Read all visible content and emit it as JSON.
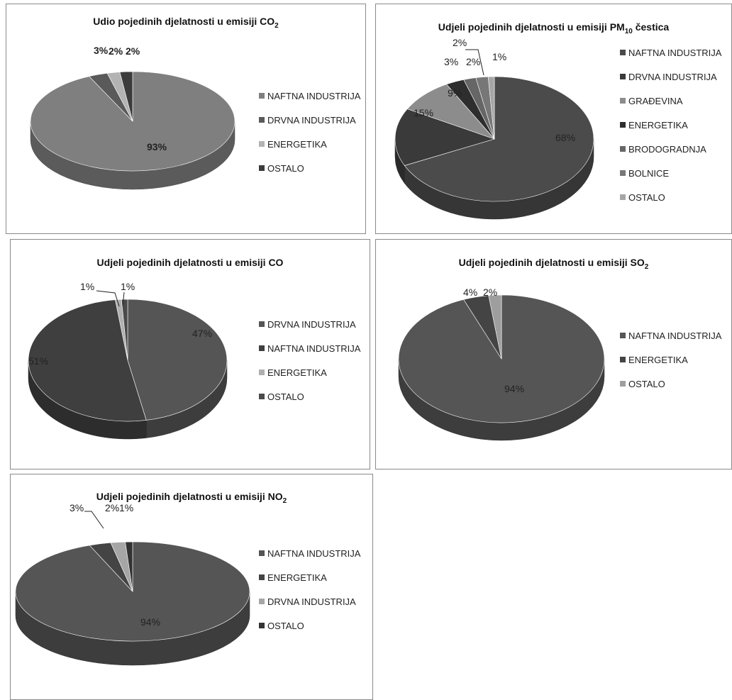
{
  "chart_data": [
    {
      "type": "pie",
      "title": "Udio pojedinih djelatnosti u emisiji CO",
      "title_sub": "2",
      "label_style": "bold",
      "slices": [
        {
          "name": "NAFTNA INDUSTRIJA",
          "value": 93,
          "label": "93%",
          "color": "#7f7f7f"
        },
        {
          "name": "DRVNA INDUSTRIJA",
          "value": 3,
          "label": "3%",
          "color": "#5a5a5a"
        },
        {
          "name": "ENERGETIKA",
          "value": 2,
          "label": "2%",
          "color": "#b3b3b3"
        },
        {
          "name": "OSTALO",
          "value": 2,
          "label": "2%",
          "color": "#3c3c3c"
        }
      ]
    },
    {
      "type": "pie",
      "title": "Udjeli pojedinih djelatnosti u emisiji PM",
      "title_sub": "10",
      "title_tail": " čestica",
      "label_style": "normal",
      "slices": [
        {
          "name": "NAFTNA INDUSTRIJA",
          "value": 68,
          "label": "68%",
          "color": "#4b4b4b"
        },
        {
          "name": "DRVNA INDUSTRIJA",
          "value": 15,
          "label": "15%",
          "color": "#3a3a3a"
        },
        {
          "name": "GRAĐEVINA",
          "value": 9,
          "label": "9%",
          "color": "#8c8c8c"
        },
        {
          "name": "ENERGETIKA",
          "value": 3,
          "label": "3%",
          "color": "#2e2e2e"
        },
        {
          "name": "BRODOGRADNJA",
          "value": 2,
          "label": "2%",
          "color": "#666666"
        },
        {
          "name": "BOLNICE",
          "value": 2,
          "label": "2%",
          "color": "#777777"
        },
        {
          "name": "OSTALO",
          "value": 1,
          "label": "1%",
          "color": "#a6a6a6"
        }
      ]
    },
    {
      "type": "pie",
      "title": "Udjeli pojedinih djelatnosti u emisiji CO",
      "label_style": "normal",
      "slices": [
        {
          "name": "DRVNA INDUSTRIJA",
          "value": 47,
          "label": "47%",
          "color": "#555555"
        },
        {
          "name": "NAFTNA INDUSTRIJA",
          "value": 51,
          "label": "51%",
          "color": "#3f3f3f"
        },
        {
          "name": "ENERGETIKA",
          "value": 1,
          "label": "1%",
          "color": "#b0b0b0"
        },
        {
          "name": "OSTALO",
          "value": 1,
          "label": "1%",
          "color": "#4a4a4a"
        }
      ]
    },
    {
      "type": "pie",
      "title": "Udjeli pojedinih djelatnosti u emisiji SO",
      "title_sub": "2",
      "label_style": "normal",
      "slices": [
        {
          "name": "NAFTNA INDUSTRIJA",
          "value": 94,
          "label": "94%",
          "color": "#555555"
        },
        {
          "name": "ENERGETIKA",
          "value": 4,
          "label": "4%",
          "color": "#444444"
        },
        {
          "name": "OSTALO",
          "value": 2,
          "label": "2%",
          "color": "#9e9e9e"
        }
      ]
    },
    {
      "type": "pie",
      "title": "Udjeli pojedinih djelatnosti u emisiji NO",
      "title_sub": "2",
      "label_style": "normal",
      "slices": [
        {
          "name": "NAFTNA INDUSTRIJA",
          "value": 94,
          "label": "94%",
          "color": "#555555"
        },
        {
          "name": "ENERGETIKA",
          "value": 3,
          "label": "3%",
          "color": "#444444"
        },
        {
          "name": "DRVNA INDUSTRIJA",
          "value": 2,
          "label": "2%",
          "color": "#a6a6a6"
        },
        {
          "name": "OSTALO",
          "value": 1,
          "label": "1%",
          "color": "#333333"
        }
      ]
    }
  ]
}
